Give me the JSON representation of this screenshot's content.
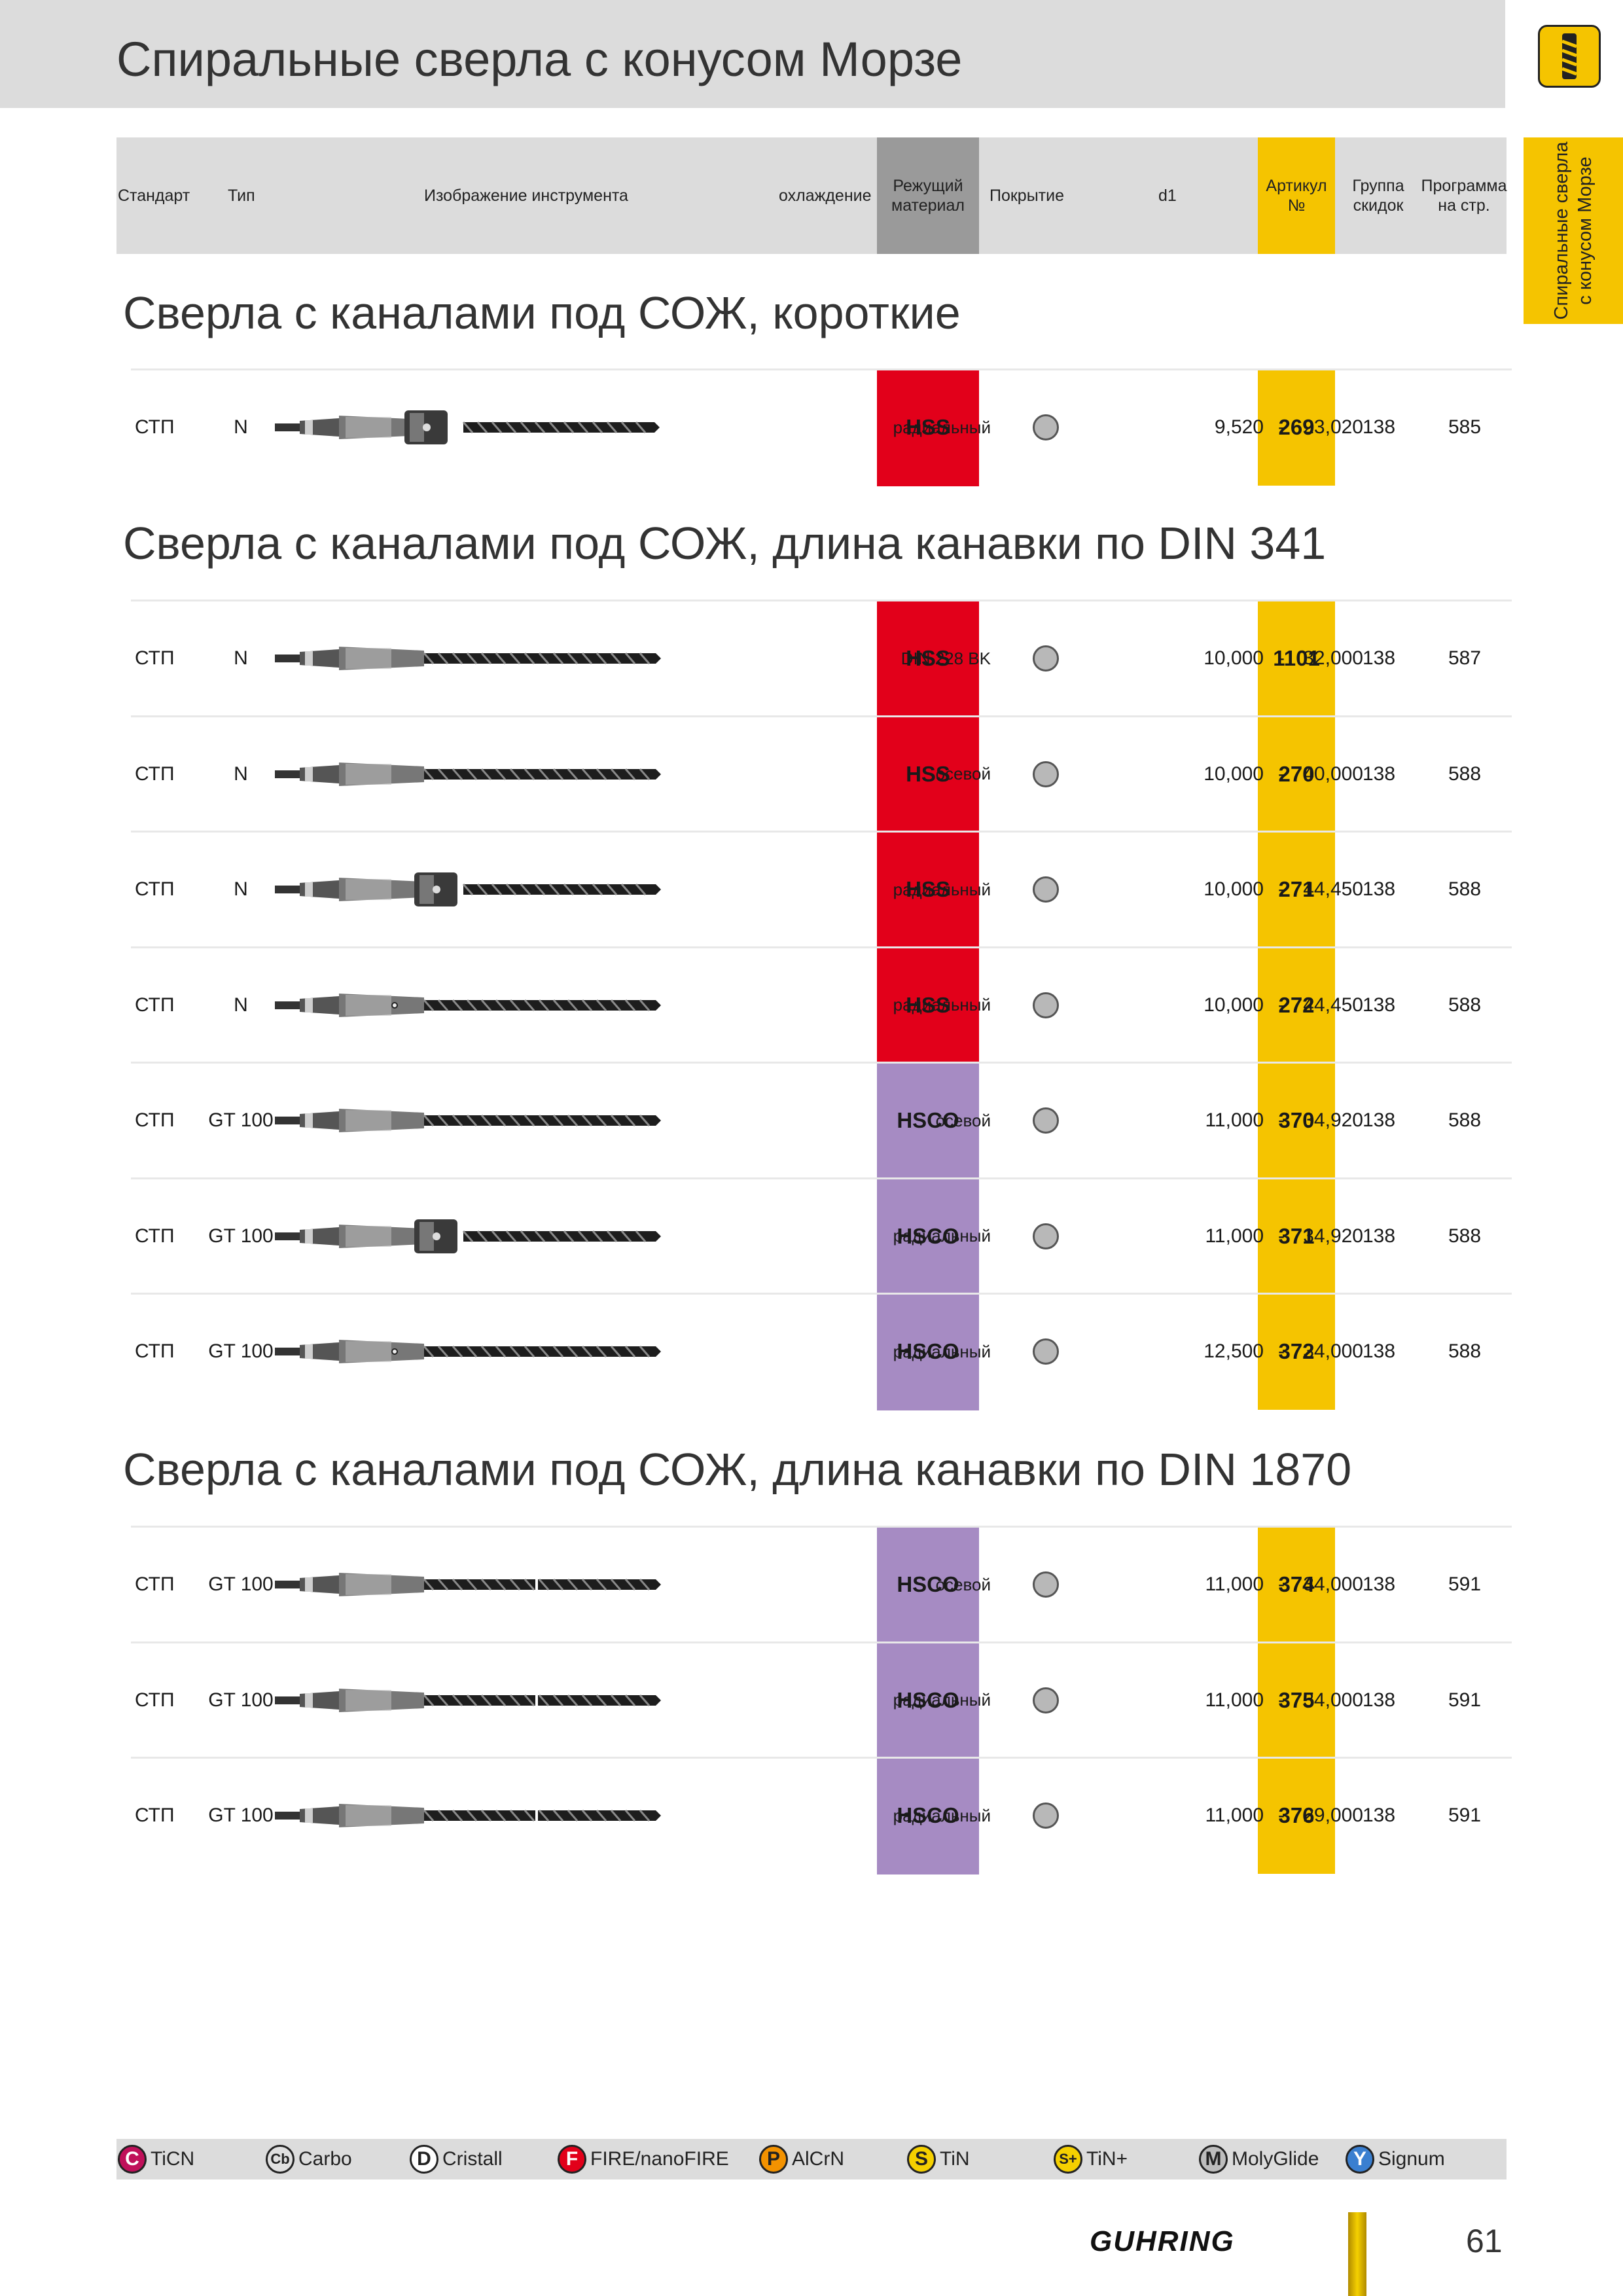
{
  "page": {
    "title": "Спиральные сверла с конусом Морзе",
    "side_tab": [
      "Спиральные сверла",
      "с конусом Морзе"
    ],
    "page_number": "61",
    "brand": "GUHRING"
  },
  "header": {
    "standard": "Стандарт",
    "type": "Тип",
    "image": "Изображение инструмента",
    "cooling": "охлаждение",
    "material_1": "Режущий",
    "material_2": "материал",
    "coating": "Покрытие",
    "d1": "d1",
    "article_1": "Артикул",
    "article_2": "№",
    "discount_1": "Группа",
    "discount_2": "скидок",
    "program_1": "Программа",
    "program_2": "на стр."
  },
  "colors": {
    "hss": "#e2001a",
    "hsco": "#a68bc3",
    "article": "#f5c400",
    "header_gray": "#dcdcdc",
    "material_header": "#9a9a9a"
  },
  "sections": [
    {
      "title": "Сверла с каналами под СОЖ, короткие",
      "rows": [
        {
          "standard": "СТП",
          "type": "N",
          "drill": "short-radial-collar",
          "cooling": "радиальный",
          "material": "HSS",
          "d_min": "9,520",
          "dash": "-",
          "d_max": "23,020",
          "article": "269",
          "discount": "138",
          "page": "585"
        }
      ]
    },
    {
      "title": "Сверла с каналами под СОЖ, длина канавки по DIN 341",
      "rows": [
        {
          "standard": "СТП",
          "type": "N",
          "drill": "plain",
          "cooling": "DIN 228 BK",
          "material": "HSS",
          "d_min": "10,000",
          "dash": "-",
          "d_max": "32,000",
          "article": "1101",
          "discount": "138",
          "page": "587"
        },
        {
          "standard": "СТП",
          "type": "N",
          "drill": "axial",
          "cooling": "осевой",
          "material": "HSS",
          "d_min": "10,000",
          "dash": "-",
          "d_max": "40,000",
          "article": "270",
          "discount": "138",
          "page": "588"
        },
        {
          "standard": "СТП",
          "type": "N",
          "drill": "radial-collar",
          "cooling": "радиальный",
          "material": "HSS",
          "d_min": "10,000",
          "dash": "-",
          "d_max": "44,450",
          "article": "271",
          "discount": "138",
          "page": "588"
        },
        {
          "standard": "СТП",
          "type": "N",
          "drill": "radial-hole",
          "cooling": "радиальный",
          "material": "HSS",
          "d_min": "10,000",
          "dash": "-",
          "d_max": "44,450",
          "article": "272",
          "discount": "138",
          "page": "588"
        },
        {
          "standard": "СТП",
          "type": "GT 100",
          "drill": "axial",
          "cooling": "осевой",
          "material": "HSCO",
          "d_min": "11,000",
          "dash": "-",
          "d_max": "34,920",
          "article": "370",
          "discount": "138",
          "page": "588"
        },
        {
          "standard": "СТП",
          "type": "GT 100",
          "drill": "radial-collar",
          "cooling": "радиальный",
          "material": "HSCO",
          "d_min": "11,000",
          "dash": "-",
          "d_max": "34,920",
          "article": "371",
          "discount": "138",
          "page": "588"
        },
        {
          "standard": "СТП",
          "type": "GT 100",
          "drill": "radial-hole",
          "cooling": "радиальный",
          "material": "HSCO",
          "d_min": "12,500",
          "dash": "-",
          "d_max": "34,000",
          "article": "372",
          "discount": "138",
          "page": "588"
        }
      ]
    },
    {
      "title": "Сверла с каналами под СОЖ, длина канавки по DIN 1870",
      "rows": [
        {
          "standard": "СТП",
          "type": "GT 100",
          "drill": "long-axial",
          "cooling": "осевой",
          "material": "HSCO",
          "d_min": "11,000",
          "dash": "-",
          "d_max": "34,000",
          "article": "374",
          "discount": "138",
          "page": "591"
        },
        {
          "standard": "СТП",
          "type": "GT 100",
          "drill": "long-axial",
          "cooling": "радиальный",
          "material": "HSCO",
          "d_min": "11,000",
          "dash": "-",
          "d_max": "34,000",
          "article": "375",
          "discount": "138",
          "page": "591"
        },
        {
          "standard": "СТП",
          "type": "GT 100",
          "drill": "long-plain",
          "cooling": "радиальный",
          "material": "HSCO",
          "d_min": "11,000",
          "dash": "-",
          "d_max": "29,000",
          "article": "376",
          "discount": "138",
          "page": "591"
        }
      ]
    }
  ],
  "legend": [
    {
      "badge": "C",
      "label": "TiCN",
      "color": "#c0105a"
    },
    {
      "badge": "Cb",
      "label": "Carbo",
      "color": "#e0e0e0"
    },
    {
      "badge": "D",
      "label": "Cristall",
      "color": "#ffffff"
    },
    {
      "badge": "F",
      "label": "FIRE/nanoFIRE",
      "color": "#e2001a"
    },
    {
      "badge": "P",
      "label": "AlCrN",
      "color": "#f39200"
    },
    {
      "badge": "S",
      "label": "TiN",
      "color": "#f5d000"
    },
    {
      "badge": "S+",
      "label": "TiN+",
      "color": "#f5d000"
    },
    {
      "badge": "M",
      "label": "MolyGlide",
      "color": "#bdbdbd"
    },
    {
      "badge": "Y",
      "label": "Signum",
      "color": "#3a7fd0"
    }
  ]
}
